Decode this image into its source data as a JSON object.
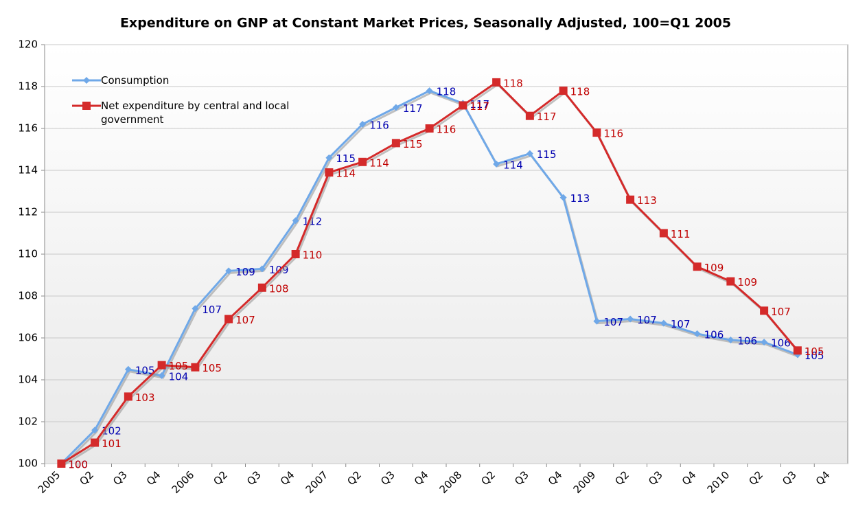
{
  "chart_data": {
    "type": "line",
    "title": "Expenditure on GNP at Constant Market Prices, Seasonally Adjusted, 100=Q1 2005",
    "categories": [
      "2005",
      "Q2",
      "Q3",
      "Q4",
      "2006",
      "Q2",
      "Q3",
      "Q4",
      "2007",
      "Q2",
      "Q3",
      "Q4",
      "2008",
      "Q2",
      "Q3",
      "Q4",
      "2009",
      "Q2",
      "Q3",
      "Q4",
      "2010",
      "Q2",
      "Q3",
      "Q4"
    ],
    "series": [
      {
        "name": "Consumption",
        "color": "#6fa8e8",
        "label_color": "#0000b0",
        "marker": "diamond",
        "values": [
          100,
          101.6,
          104.5,
          104.2,
          107.4,
          109.2,
          109.3,
          111.6,
          114.6,
          116.2,
          117.0,
          117.8,
          117.2,
          114.3,
          114.8,
          112.7,
          106.8,
          106.9,
          106.7,
          106.2,
          105.9,
          105.8,
          105.2,
          null
        ],
        "value_labels": [
          "100",
          "102",
          "105",
          "104",
          "107",
          "109",
          "109",
          "112",
          "115",
          "116",
          "117",
          "118",
          "117",
          "114",
          "115",
          "113",
          "107",
          "107",
          "107",
          "106",
          "106",
          "106",
          "105",
          null
        ]
      },
      {
        "name": "Net expenditure by central and local government",
        "color": "#d42a2a",
        "label_color": "#c00000",
        "marker": "square",
        "values": [
          100,
          101.0,
          103.2,
          104.7,
          104.6,
          106.9,
          108.4,
          110.0,
          113.9,
          114.4,
          115.3,
          116.0,
          117.1,
          118.2,
          116.6,
          117.8,
          115.8,
          112.6,
          111.0,
          109.4,
          108.7,
          107.3,
          105.4,
          null
        ],
        "value_labels": [
          "100",
          "101",
          "103",
          "105",
          "105",
          "107",
          "108",
          "110",
          "114",
          "114",
          "115",
          "116",
          "117",
          "118",
          "117",
          "118",
          "116",
          "113",
          "111",
          "109",
          "109",
          "107",
          "105",
          null
        ]
      }
    ],
    "ylim": [
      100,
      120
    ],
    "yticks": [
      100,
      102,
      104,
      106,
      108,
      110,
      112,
      114,
      116,
      118,
      120
    ],
    "grid": true
  }
}
